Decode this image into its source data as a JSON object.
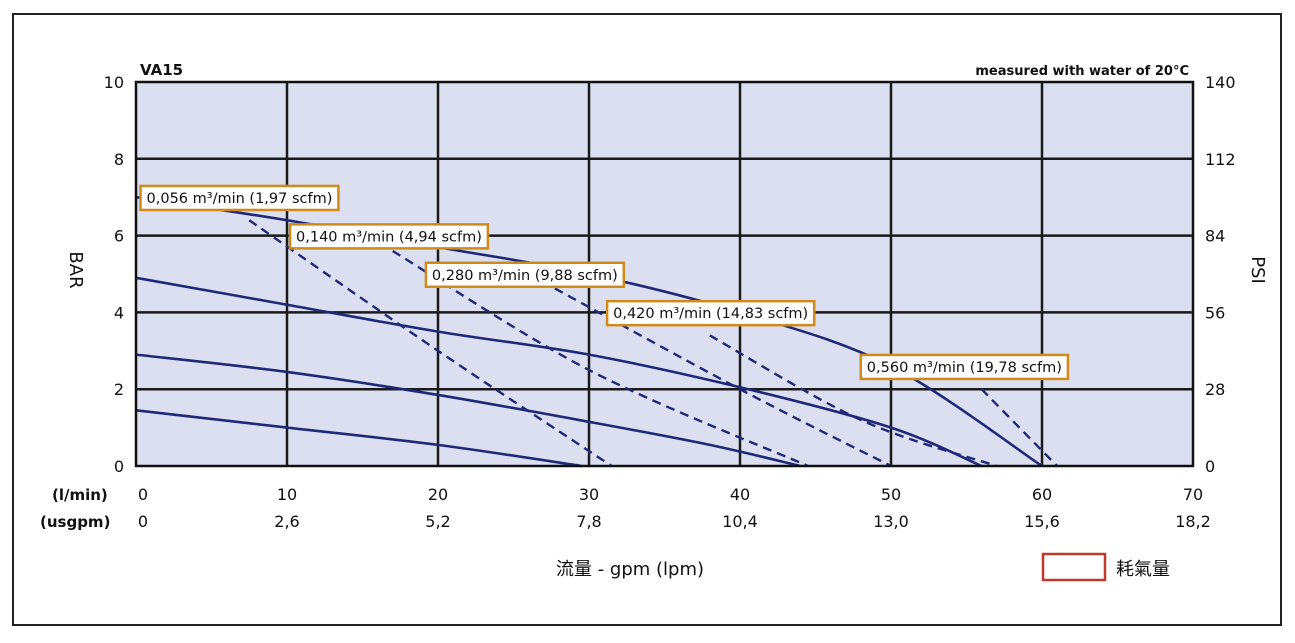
{
  "chart_data": {
    "type": "line",
    "model": "VA15",
    "note": "measured with water of 20°C",
    "x_unit_labels": [
      "(l/min)",
      "(usgpm)"
    ],
    "x_ticks_lpm": [
      0,
      10,
      20,
      30,
      40,
      50,
      60,
      70
    ],
    "x_ticks_usgpm": [
      "0",
      "2,6",
      "5,2",
      "7,8",
      "10,4",
      "13,0",
      "15,6",
      "18,2"
    ],
    "xlim": [
      0,
      70
    ],
    "ylim": [
      0,
      10
    ],
    "y_left_label": "BAR",
    "y_left_ticks": [
      0,
      2,
      4,
      6,
      8,
      10
    ],
    "y_right_label": "PSI",
    "y_right_ticks": [
      0,
      28,
      56,
      84,
      112,
      140
    ],
    "xlabel": "流量 - gpm (lpm)",
    "legend_label": "耗氣量",
    "legend_color": "#c0392b",
    "grid": true,
    "background_color": "#dcdff0",
    "line_color": "#1e2a78",
    "label_border_color": "#d08a1c",
    "solid_curves": [
      {
        "points": [
          [
            0,
            7.0
          ],
          [
            10,
            6.4
          ],
          [
            20,
            5.7
          ],
          [
            30,
            5.0
          ],
          [
            40,
            4.0
          ],
          [
            50,
            2.6
          ],
          [
            60,
            0
          ]
        ]
      },
      {
        "points": [
          [
            0,
            4.9
          ],
          [
            10,
            4.2
          ],
          [
            20,
            3.5
          ],
          [
            30,
            2.9
          ],
          [
            40,
            2.05
          ],
          [
            50,
            1.0
          ],
          [
            56,
            0
          ]
        ]
      },
      {
        "points": [
          [
            0,
            2.9
          ],
          [
            10,
            2.45
          ],
          [
            20,
            1.85
          ],
          [
            30,
            1.15
          ],
          [
            38,
            0.55
          ],
          [
            44,
            0
          ]
        ]
      },
      {
        "points": [
          [
            0,
            1.45
          ],
          [
            10,
            1.0
          ],
          [
            20,
            0.55
          ],
          [
            29.5,
            0
          ]
        ]
      }
    ],
    "dashed_curves": [
      {
        "points": [
          [
            7.5,
            6.4
          ],
          [
            20,
            3.0
          ],
          [
            31.5,
            0
          ]
        ]
      },
      {
        "points": [
          [
            17,
            5.6
          ],
          [
            30,
            2.5
          ],
          [
            44.5,
            0
          ]
        ]
      },
      {
        "points": [
          [
            26,
            5.0
          ],
          [
            40,
            2.0
          ],
          [
            50,
            0
          ]
        ]
      },
      {
        "points": [
          [
            38,
            3.4
          ],
          [
            48,
            1.2
          ],
          [
            57,
            0
          ]
        ]
      },
      {
        "points": [
          [
            56,
            2.0
          ],
          [
            58.5,
            1.0
          ],
          [
            61,
            0
          ]
        ]
      }
    ],
    "air_labels": [
      {
        "text": "0,056 m³/min (1,97 scfm)",
        "at": [
          0.3,
          6.98
        ]
      },
      {
        "text": "0,140 m³/min (4,94 scfm)",
        "at": [
          10.2,
          5.98
        ]
      },
      {
        "text": "0,280 m³/min (9,88 scfm)",
        "at": [
          19.2,
          4.98
        ]
      },
      {
        "text": "0,420 m³/min (14,83 scfm)",
        "at": [
          31.2,
          3.98
        ]
      },
      {
        "text": "0,560 m³/min (19,78 scfm)",
        "at": [
          48.0,
          2.58
        ]
      }
    ]
  }
}
